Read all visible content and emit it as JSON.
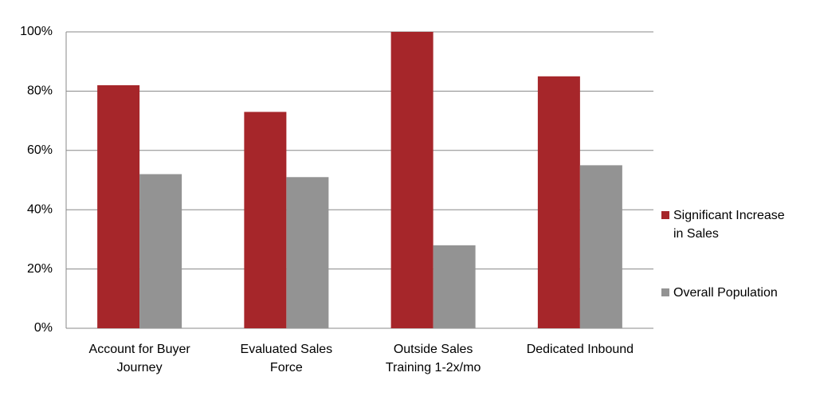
{
  "chart_data": {
    "type": "bar",
    "categories": [
      "Account for Buyer Journey",
      "Evaluated Sales Force",
      "Outside Sales Training 1-2x/mo",
      "Dedicated Inbound"
    ],
    "series": [
      {
        "name": "Significant Increase in Sales",
        "color": "#a6262a",
        "values": [
          82,
          73,
          100,
          85
        ]
      },
      {
        "name": "Overall Population",
        "color": "#939393",
        "values": [
          52,
          51,
          28,
          55
        ]
      }
    ],
    "ylim": [
      0,
      100
    ],
    "yticks": [
      {
        "value": 0,
        "label": "0%"
      },
      {
        "value": 20,
        "label": "20%"
      },
      {
        "value": 40,
        "label": "40%"
      },
      {
        "value": 60,
        "label": "60%"
      },
      {
        "value": 80,
        "label": "80%"
      },
      {
        "value": 100,
        "label": "100%"
      }
    ],
    "grid": true,
    "legend": "right"
  }
}
